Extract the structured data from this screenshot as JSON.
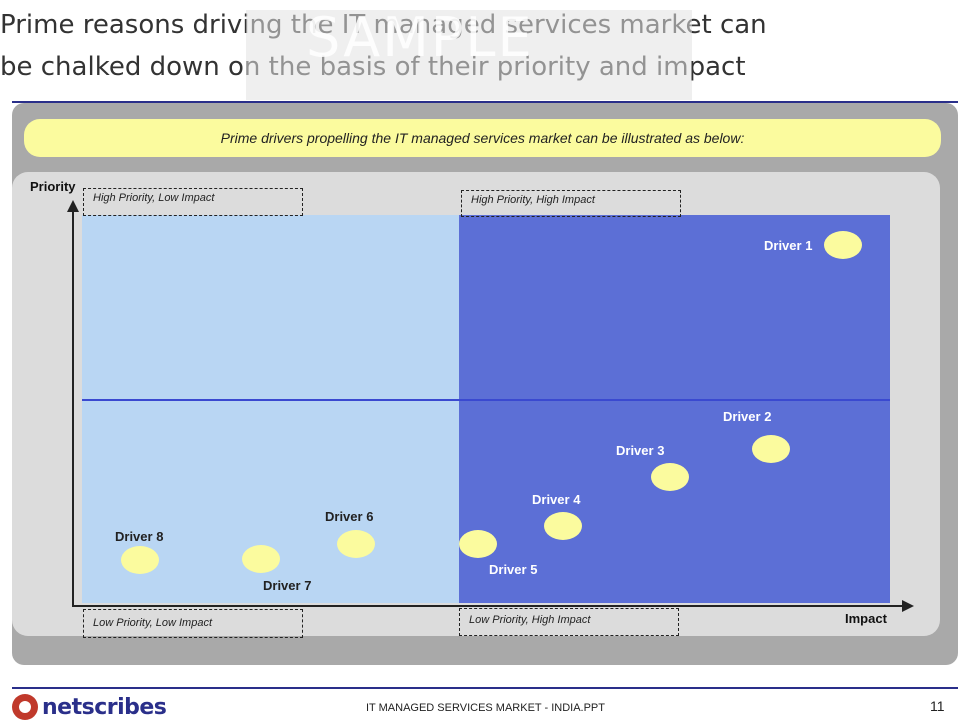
{
  "title": {
    "line1": "Prime reasons driving the IT managed services market can",
    "line2": "be chalked down on the basis of their priority and impact"
  },
  "watermark": "SAMPLE",
  "banner": "Prime drivers propelling the IT managed services market can be illustrated as below:",
  "axes": {
    "y_label": "Priority",
    "x_label": "Impact"
  },
  "quadrants": {
    "top_left": "High Priority, Low Impact",
    "top_right": "High Priority, High Impact",
    "bottom_left": "Low Priority, Low Impact",
    "bottom_right": "Low Priority, High Impact"
  },
  "drivers": [
    {
      "label": "Driver 1"
    },
    {
      "label": "Driver 2"
    },
    {
      "label": "Driver 3"
    },
    {
      "label": "Driver 4"
    },
    {
      "label": "Driver 5"
    },
    {
      "label": "Driver 6"
    },
    {
      "label": "Driver 7"
    },
    {
      "label": "Driver 8"
    }
  ],
  "colors": {
    "low_impact_region": "#b9d6f3",
    "high_impact_region": "#5c6fd6",
    "bubble": "#fbfb9e",
    "banner": "#fbfb9e",
    "accent_line": "#2a2f8a"
  },
  "footer": {
    "logo_text": "netscribes",
    "document": "IT MANAGED SERVICES MARKET - INDIA.PPT",
    "page": "11"
  }
}
